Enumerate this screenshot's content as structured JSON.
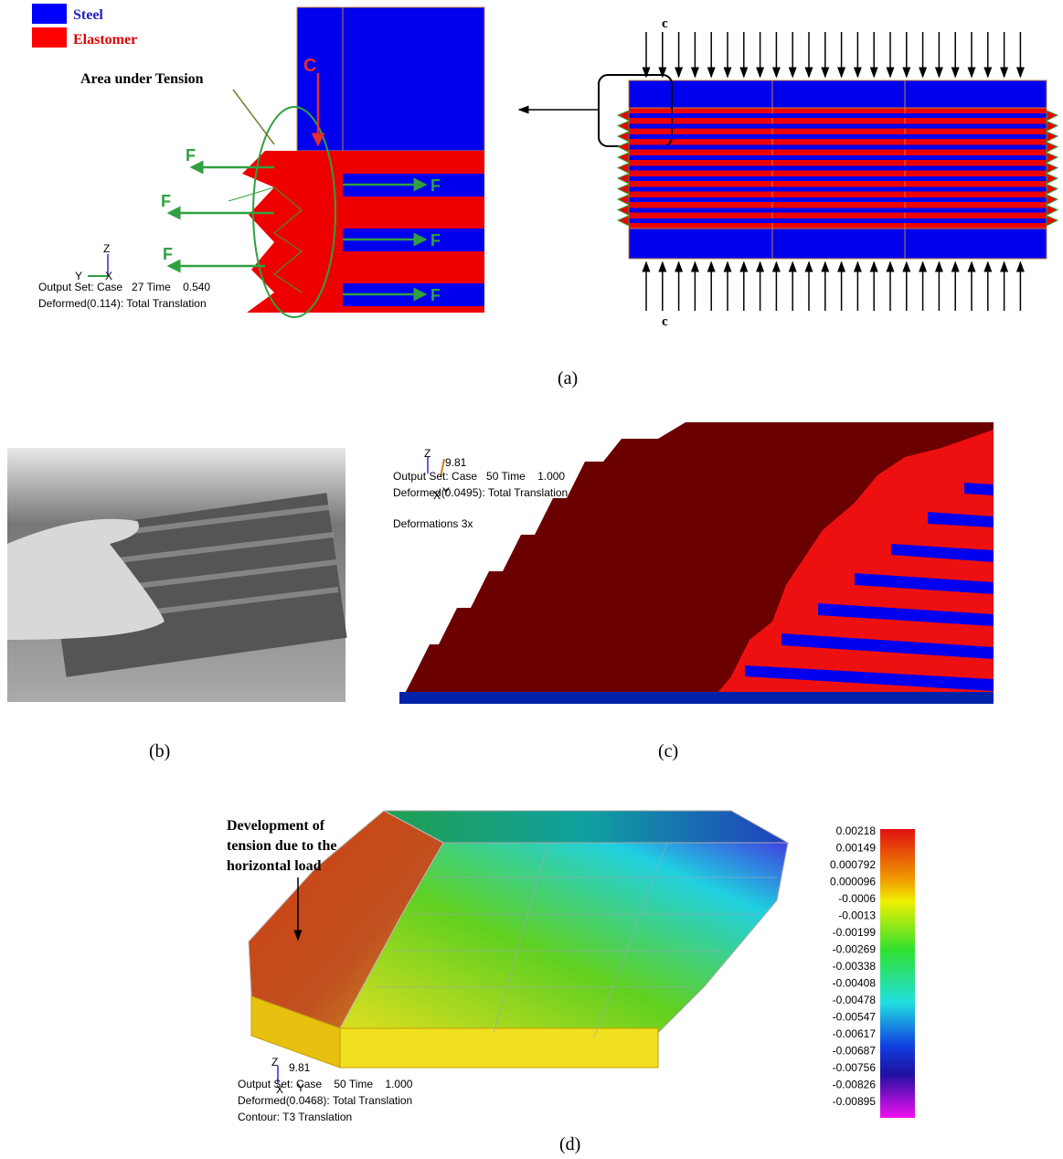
{
  "panel_a": {
    "legend": [
      "Steel",
      "Elastomer"
    ],
    "annotation": "Area under Tension",
    "load_label": "C",
    "force_labels": [
      "F",
      "F",
      "F",
      "F",
      "F",
      "F"
    ],
    "axis_labels": [
      "Z",
      "Y",
      "X"
    ],
    "output_set": "Output Set: Case   27 Time    0.540",
    "deformed": "Deformed(0.114): Total Translation",
    "right_load_labels": [
      "c",
      "c"
    ],
    "caption": "(a)"
  },
  "panel_b": {
    "caption": "(b)"
  },
  "panel_c": {
    "axis_labels": [
      "Z",
      "X",
      "Y"
    ],
    "gravity": "9.81",
    "output_set": "Output Set: Case   50 Time    1.000",
    "deformed": "Deformed(0.0495): Total Translation",
    "note": "Deformations 3x",
    "caption": "(c)"
  },
  "panel_d": {
    "annotation": [
      "Development of",
      "tension due to the",
      "horizontal load"
    ],
    "axis_labels": [
      "Z",
      "X",
      "Y"
    ],
    "gravity": "9.81",
    "output_set": "Output Set: Case    50 Time    1.000",
    "deformed": "Deformed(0.0468): Total Translation",
    "contour": "Contour: T3 Translation",
    "scale": [
      {
        "label": "0.00218",
        "color": "#e02020"
      },
      {
        "label": "0.00149",
        "color": "#e04a10"
      },
      {
        "label": "0.000792",
        "color": "#e08a10"
      },
      {
        "label": "0.000096",
        "color": "#f0e0a0"
      },
      {
        "label": "-0.0006",
        "color": "#c8b800"
      },
      {
        "label": "-0.0013",
        "color": "#88b000"
      },
      {
        "label": "-0.00199",
        "color": "#20a020"
      },
      {
        "label": "-0.00269",
        "color": "#10a040"
      },
      {
        "label": "-0.00338",
        "color": "#10a080"
      },
      {
        "label": "-0.00408",
        "color": "#10b0b0"
      },
      {
        "label": "-0.00478",
        "color": "#1090c0"
      },
      {
        "label": "-0.00547",
        "color": "#1060d0"
      },
      {
        "label": "-0.00617",
        "color": "#1030c0"
      },
      {
        "label": "-0.00687",
        "color": "#1010a0"
      },
      {
        "label": "-0.00756",
        "color": "#6010b0"
      },
      {
        "label": "-0.00826",
        "color": "#9010c0"
      },
      {
        "label": "-0.00895",
        "color": "#d010d0"
      }
    ],
    "caption": "(d)"
  }
}
